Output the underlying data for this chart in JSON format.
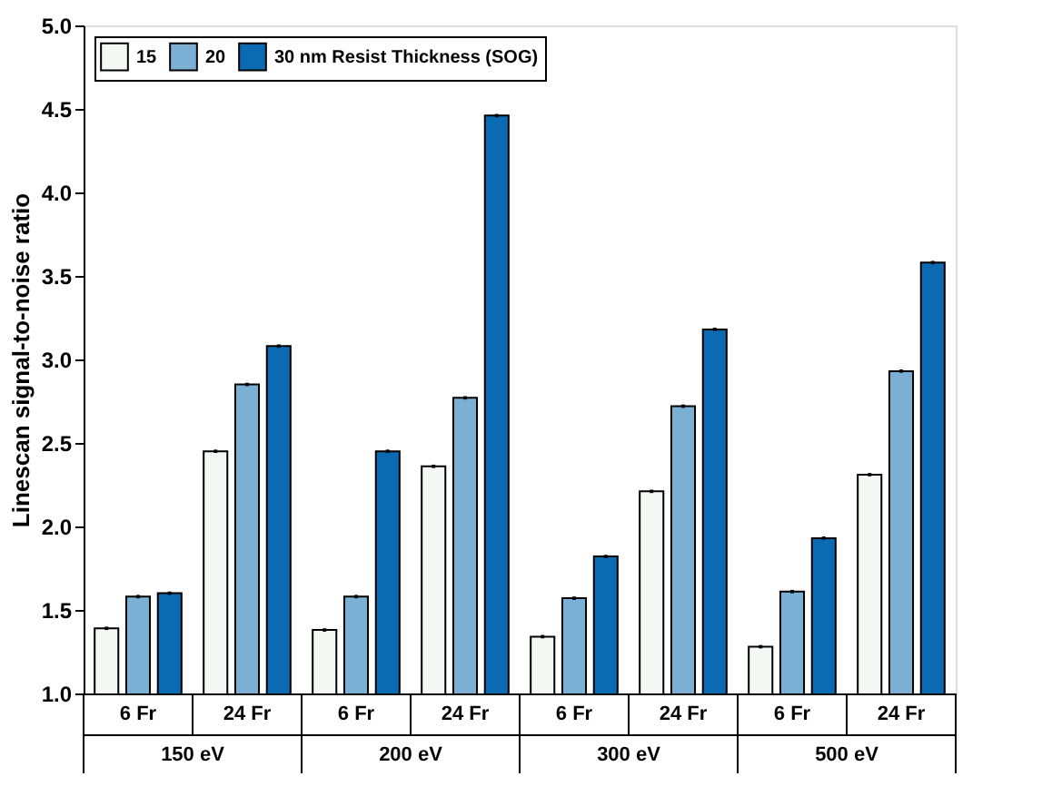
{
  "chart_data": {
    "type": "bar",
    "ylabel": "Linescan signal-to-noise ratio",
    "categories": [
      "6 Fr",
      "24 Fr",
      "6 Fr",
      "24 Fr",
      "6 Fr",
      "24 Fr",
      "6 Fr",
      "24 Fr"
    ],
    "annotations": [
      "150 eV",
      "200 eV",
      "300 eV",
      "500 eV"
    ],
    "series": [
      {
        "name": "15",
        "color": "#f3f8f4",
        "values": [
          1.39,
          2.45,
          1.38,
          2.36,
          1.34,
          2.21,
          1.28,
          2.31
        ],
        "errors": [
          0.01,
          0.01,
          0.01,
          0.01,
          0.01,
          0.01,
          0.01,
          0.01
        ]
      },
      {
        "name": "20",
        "color": "#7bafd4",
        "values": [
          1.58,
          2.85,
          1.58,
          2.77,
          1.57,
          2.72,
          1.61,
          2.93
        ],
        "errors": [
          0.01,
          0.01,
          0.01,
          0.01,
          0.01,
          0.01,
          0.01,
          0.01
        ]
      },
      {
        "name": "30 nm Resist Thickness (SOG)",
        "color": "#0a6ab2",
        "values": [
          1.6,
          3.08,
          2.45,
          4.46,
          1.82,
          3.18,
          1.93,
          3.58
        ],
        "errors": [
          0.01,
          0.01,
          0.01,
          0.01,
          0.01,
          0.01,
          0.01,
          0.01
        ]
      }
    ],
    "ylim": [
      1.0,
      5.0
    ],
    "yticks": [
      {
        "value": 1,
        "label": "1.0"
      },
      1.5,
      {
        "value": 2,
        "label": "2.0"
      },
      2.5,
      {
        "value": 3,
        "label": "3.0"
      },
      3.5,
      {
        "value": 4,
        "label": "4.0"
      },
      4.5,
      {
        "value": 5,
        "label": "5.0"
      }
    ],
    "legend": "top left",
    "grid": false
  }
}
